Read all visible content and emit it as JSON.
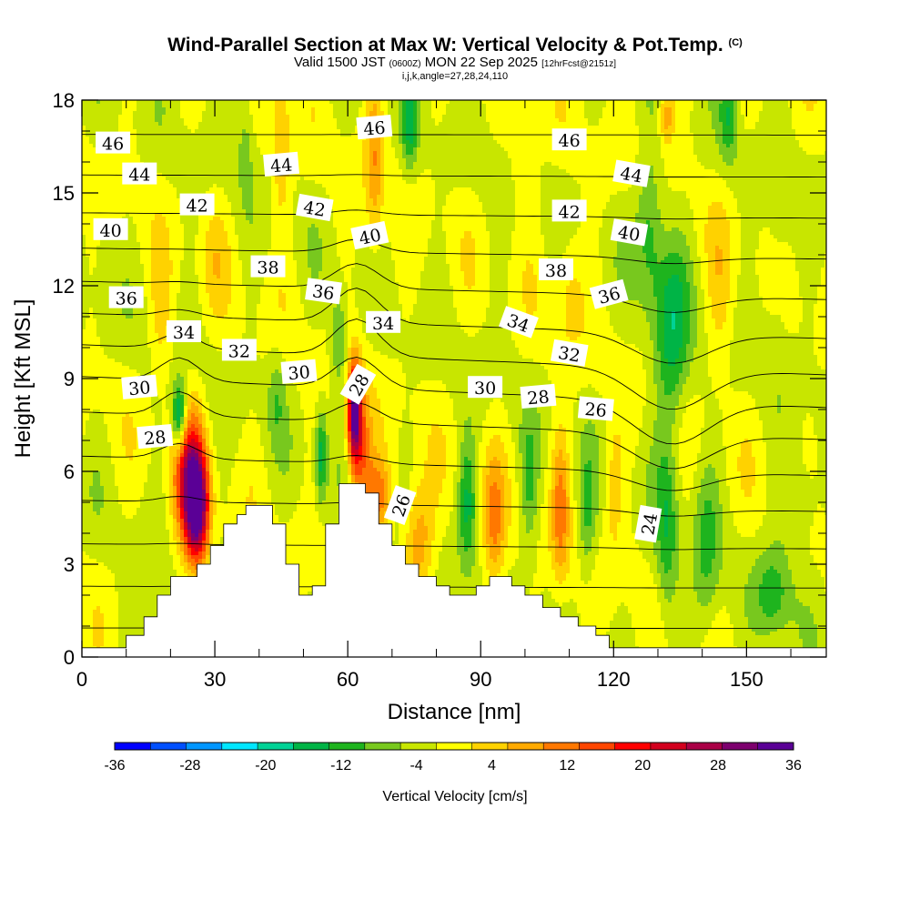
{
  "header": {
    "title": "Wind-Parallel Section at Max W: Vertical Velocity & Pot.Temp.",
    "title_mark": "(C)",
    "valid_prefix": "Valid 1500 JST",
    "valid_utc": "(0600Z)",
    "valid_date": "MON 22 Sep 2025",
    "forecast_tag": "[12hrFcst@2151z]",
    "indices": "i,j,k,angle=27,28,24,110"
  },
  "chart_data": {
    "type": "heatmap",
    "xlabel": "Distance [nm]",
    "ylabel": "Height [Kft MSL]",
    "xlim": [
      0,
      168
    ],
    "ylim": [
      0,
      18
    ],
    "x_ticks": [
      "0",
      "30",
      "60",
      "90",
      "120",
      "150"
    ],
    "x_tick_values": [
      0,
      30,
      60,
      90,
      120,
      150
    ],
    "y_ticks": [
      "0",
      "3",
      "6",
      "9",
      "12",
      "15",
      "18"
    ],
    "y_tick_values": [
      0,
      3,
      6,
      9,
      12,
      15,
      18
    ],
    "grid": false,
    "colorbar": {
      "label": "Vertical Velocity [cm/s]",
      "levels": [
        -36,
        -32,
        -28,
        -24,
        -20,
        -16,
        -12,
        -8,
        -4,
        0,
        4,
        8,
        12,
        16,
        20,
        24,
        28,
        32,
        36
      ],
      "tick_labels": [
        "-36",
        "-28",
        "-20",
        "-12",
        "-4",
        "4",
        "12",
        "20",
        "28",
        "36"
      ],
      "tick_values": [
        -36,
        -28,
        -20,
        -12,
        -4,
        4,
        12,
        20,
        28,
        36
      ],
      "colors": [
        "#0000ff",
        "#0050ff",
        "#0096ff",
        "#00e6ff",
        "#00d296",
        "#00b446",
        "#1eb41e",
        "#78c81e",
        "#c8e600",
        "#ffff00",
        "#ffd200",
        "#ffaa00",
        "#ff7800",
        "#ff4600",
        "#ff0000",
        "#d2001e",
        "#aa0046",
        "#7d006e",
        "#5a0096"
      ]
    },
    "background_color": "#d2f000",
    "terrain": [
      [
        0,
        0.3
      ],
      [
        10,
        0.3
      ],
      [
        10,
        0.7
      ],
      [
        14,
        0.7
      ],
      [
        14,
        1.3
      ],
      [
        17,
        1.3
      ],
      [
        17,
        2.0
      ],
      [
        20,
        2.0
      ],
      [
        20,
        2.6
      ],
      [
        26,
        2.6
      ],
      [
        26,
        3.0
      ],
      [
        29,
        3.0
      ],
      [
        29,
        3.6
      ],
      [
        32,
        3.6
      ],
      [
        32,
        4.3
      ],
      [
        35,
        4.3
      ],
      [
        35,
        4.6
      ],
      [
        37,
        4.6
      ],
      [
        37,
        4.9
      ],
      [
        43,
        4.9
      ],
      [
        43,
        4.3
      ],
      [
        46,
        4.3
      ],
      [
        46,
        3.0
      ],
      [
        49,
        3.0
      ],
      [
        49,
        2.0
      ],
      [
        52,
        2.0
      ],
      [
        52,
        2.3
      ],
      [
        55,
        2.3
      ],
      [
        55,
        4.3
      ],
      [
        58,
        4.3
      ],
      [
        58,
        5.6
      ],
      [
        64,
        5.6
      ],
      [
        64,
        5.3
      ],
      [
        67,
        5.3
      ],
      [
        67,
        4.3
      ],
      [
        70,
        4.3
      ],
      [
        70,
        3.6
      ],
      [
        73,
        3.6
      ],
      [
        73,
        3.0
      ],
      [
        76,
        3.0
      ],
      [
        76,
        2.6
      ],
      [
        80,
        2.6
      ],
      [
        80,
        2.3
      ],
      [
        83,
        2.3
      ],
      [
        83,
        2.0
      ],
      [
        89,
        2.0
      ],
      [
        89,
        2.3
      ],
      [
        92,
        2.3
      ],
      [
        92,
        2.6
      ],
      [
        97,
        2.6
      ],
      [
        97,
        2.3
      ],
      [
        100,
        2.3
      ],
      [
        100,
        2.0
      ],
      [
        104,
        2.0
      ],
      [
        104,
        1.6
      ],
      [
        108,
        1.6
      ],
      [
        108,
        1.3
      ],
      [
        112,
        1.3
      ],
      [
        112,
        1.0
      ],
      [
        116,
        1.0
      ],
      [
        116,
        0.7
      ],
      [
        119,
        0.7
      ],
      [
        119,
        0.3
      ],
      [
        168,
        0.3
      ]
    ],
    "w_features": [
      {
        "x": 26,
        "y": 4.8,
        "w": 34,
        "rx": 2.6,
        "ry": 1.8
      },
      {
        "x": 24,
        "y": 5.8,
        "w": 22,
        "rx": 3.5,
        "ry": 2.3
      },
      {
        "x": 22,
        "y": 7.8,
        "w": -22,
        "rx": 1.6,
        "ry": 1.1
      },
      {
        "x": 61.5,
        "y": 7.9,
        "w": 36,
        "rx": 1.5,
        "ry": 1.6
      },
      {
        "x": 63,
        "y": 6.5,
        "w": 14,
        "rx": 2.5,
        "ry": 2.2
      },
      {
        "x": 54,
        "y": 6.5,
        "w": -14,
        "rx": 1.3,
        "ry": 1.5
      },
      {
        "x": 58,
        "y": 10.2,
        "w": -10,
        "rx": 2.0,
        "ry": 1.5
      },
      {
        "x": 67,
        "y": 5.2,
        "w": 14,
        "rx": 3.0,
        "ry": 1.2
      },
      {
        "x": 76,
        "y": 3.8,
        "w": 12,
        "rx": 3.5,
        "ry": 1.8
      },
      {
        "x": 66,
        "y": 16.0,
        "w": 10,
        "rx": 2.0,
        "ry": 3.0
      },
      {
        "x": 74,
        "y": 17.2,
        "w": -12,
        "rx": 1.8,
        "ry": 1.5
      },
      {
        "x": 93,
        "y": 4.2,
        "w": 12,
        "rx": 2.5,
        "ry": 2.2
      },
      {
        "x": 87,
        "y": 5.0,
        "w": -12,
        "rx": 2.0,
        "ry": 2.0
      },
      {
        "x": 108,
        "y": 4.8,
        "w": 12,
        "rx": 2.0,
        "ry": 2.5
      },
      {
        "x": 101,
        "y": 5.5,
        "w": -8,
        "rx": 2.0,
        "ry": 2.0
      },
      {
        "x": 114,
        "y": 4.5,
        "w": -8,
        "rx": 2.0,
        "ry": 2.0
      },
      {
        "x": 120,
        "y": 5.5,
        "w": 6,
        "rx": 2.0,
        "ry": 2.0
      },
      {
        "x": 133,
        "y": 10.5,
        "w": -14,
        "rx": 4.0,
        "ry": 3.0
      },
      {
        "x": 128,
        "y": 14.0,
        "w": -10,
        "rx": 3.0,
        "ry": 2.5
      },
      {
        "x": 132,
        "y": 4.0,
        "w": -10,
        "rx": 2.5,
        "ry": 3.0
      },
      {
        "x": 141,
        "y": 3.5,
        "w": -8,
        "rx": 3.0,
        "ry": 3.0
      },
      {
        "x": 156,
        "y": 2.0,
        "w": -10,
        "rx": 4.0,
        "ry": 1.5
      },
      {
        "x": 162,
        "y": 5.0,
        "w": -6,
        "rx": 5.0,
        "ry": 1.5
      },
      {
        "x": 132,
        "y": 17.5,
        "w": 12,
        "rx": 1.8,
        "ry": 1.0
      },
      {
        "x": 146,
        "y": 17.5,
        "w": -10,
        "rx": 2.0,
        "ry": 1.5
      },
      {
        "x": 45,
        "y": 16.5,
        "w": 8,
        "rx": 2.0,
        "ry": 2.5
      },
      {
        "x": 37,
        "y": 17.0,
        "w": -6,
        "rx": 2.0,
        "ry": 2.0
      },
      {
        "x": 18,
        "y": 11.0,
        "w": 6,
        "rx": 2.5,
        "ry": 2.0
      },
      {
        "x": 5,
        "y": 12.5,
        "w": -4,
        "rx": 2.0,
        "ry": 2.0
      },
      {
        "x": 44,
        "y": 8.5,
        "w": -6,
        "rx": 2.0,
        "ry": 1.5
      },
      {
        "x": 100,
        "y": 16.0,
        "w": 5,
        "rx": 3.0,
        "ry": 2.0
      },
      {
        "x": 110,
        "y": 12.0,
        "w": 6,
        "rx": 3.0,
        "ry": 2.0
      },
      {
        "x": 15,
        "y": 1.5,
        "w": -4,
        "rx": 5.0,
        "ry": 1.0
      },
      {
        "x": 144,
        "y": 11.5,
        "w": 5,
        "rx": 3.0,
        "ry": 3.0
      },
      {
        "x": 157,
        "y": 12.5,
        "w": -4,
        "rx": 3.0,
        "ry": 3.0
      },
      {
        "x": 30,
        "y": 13.0,
        "w": 4,
        "rx": 3.0,
        "ry": 2.0
      }
    ],
    "theta_labels": [
      {
        "text": "46",
        "x": 7,
        "y": 16.6,
        "angle": 0
      },
      {
        "text": "44",
        "x": 13,
        "y": 15.6,
        "angle": 0
      },
      {
        "text": "42",
        "x": 26,
        "y": 14.6,
        "angle": 0
      },
      {
        "text": "40",
        "x": 6.5,
        "y": 13.8,
        "angle": 0
      },
      {
        "text": "38",
        "x": 42,
        "y": 12.6,
        "angle": 0
      },
      {
        "text": "36",
        "x": 10,
        "y": 11.6,
        "angle": 0
      },
      {
        "text": "34",
        "x": 23,
        "y": 10.5,
        "angle": 0
      },
      {
        "text": "32",
        "x": 35.5,
        "y": 9.9,
        "angle": 0
      },
      {
        "text": "30",
        "x": 13,
        "y": 8.7,
        "angle": -5
      },
      {
        "text": "28",
        "x": 16.5,
        "y": 7.1,
        "angle": -5
      },
      {
        "text": "46",
        "x": 66,
        "y": 17.1,
        "angle": -5
      },
      {
        "text": "44",
        "x": 45,
        "y": 15.9,
        "angle": -5
      },
      {
        "text": "42",
        "x": 52.5,
        "y": 14.5,
        "angle": 10
      },
      {
        "text": "40",
        "x": 65,
        "y": 13.6,
        "angle": -12
      },
      {
        "text": "36",
        "x": 54.5,
        "y": 11.8,
        "angle": 8
      },
      {
        "text": "34",
        "x": 68,
        "y": 10.8,
        "angle": 0
      },
      {
        "text": "30",
        "x": 49,
        "y": 9.2,
        "angle": -5
      },
      {
        "text": "28",
        "x": 62.5,
        "y": 8.8,
        "angle": -60
      },
      {
        "text": "30",
        "x": 91,
        "y": 8.7,
        "angle": 0
      },
      {
        "text": "28",
        "x": 103,
        "y": 8.4,
        "angle": -5
      },
      {
        "text": "26",
        "x": 116,
        "y": 8.0,
        "angle": 5
      },
      {
        "text": "26",
        "x": 72,
        "y": 4.9,
        "angle": -70
      },
      {
        "text": "24",
        "x": 128,
        "y": 4.3,
        "angle": -80
      },
      {
        "text": "46",
        "x": 110,
        "y": 16.7,
        "angle": 0
      },
      {
        "text": "44",
        "x": 124,
        "y": 15.6,
        "angle": 10
      },
      {
        "text": "42",
        "x": 110,
        "y": 14.4,
        "angle": 0
      },
      {
        "text": "40",
        "x": 123.5,
        "y": 13.7,
        "angle": 10
      },
      {
        "text": "38",
        "x": 107,
        "y": 12.5,
        "angle": 0
      },
      {
        "text": "36",
        "x": 119,
        "y": 11.7,
        "angle": -15
      },
      {
        "text": "34",
        "x": 98.5,
        "y": 10.8,
        "angle": 20
      },
      {
        "text": "32",
        "x": 110,
        "y": 9.8,
        "angle": 10
      }
    ]
  }
}
